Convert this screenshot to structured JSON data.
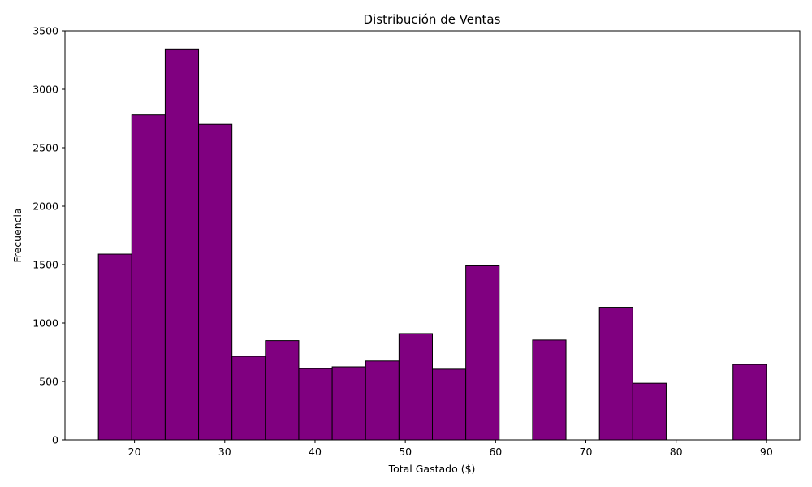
{
  "chart_data": {
    "type": "bar",
    "title": "Distribución de Ventas",
    "xlabel": "Total Gastado ($)",
    "ylabel": "Frecuencia",
    "bin_edges": [
      16.0,
      19.7,
      23.4,
      27.1,
      30.8,
      34.5,
      38.2,
      41.9,
      45.6,
      49.3,
      53.0,
      56.7,
      60.4,
      64.1,
      67.8,
      71.5,
      75.2,
      78.9,
      82.6,
      86.3,
      90.0
    ],
    "values": [
      1590,
      2780,
      3345,
      2700,
      715,
      850,
      610,
      625,
      675,
      910,
      605,
      1490,
      0,
      855,
      0,
      1135,
      485,
      0,
      0,
      645
    ],
    "xlim": [
      12.3,
      93.7
    ],
    "ylim": [
      0,
      3500
    ],
    "x_ticks": [
      20,
      30,
      40,
      50,
      60,
      70,
      80,
      90
    ],
    "y_ticks": [
      0,
      500,
      1000,
      1500,
      2000,
      2500,
      3000,
      3500
    ],
    "bar_color": "#800080",
    "edge_color": "#000000",
    "grid": false,
    "legend": "none"
  }
}
